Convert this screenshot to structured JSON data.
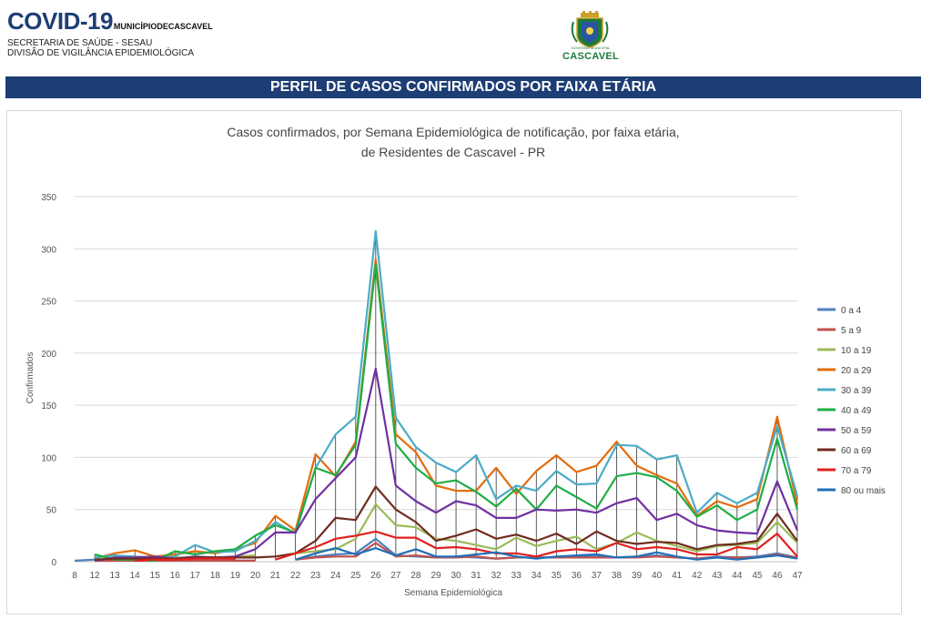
{
  "header": {
    "title": "COVID-19",
    "municipality": "MUNICÍPIODECASCAVEL",
    "line1": "SECRETARIA DE SAÚDE - SESAU",
    "line2": "DIVISÃO DE VIGILÂNCIA EPIDEMIOLÓGICA",
    "logo_top": "GOVERNO MUNICIPAL",
    "logo_text": "CASCAVEL"
  },
  "banner": {
    "text": "PERFIL DE CASOS CONFIRMADOS POR FAIXA ETÁRIA"
  },
  "chart_data": {
    "type": "line",
    "title": "Casos confirmados, por Semana Epidemiológica de notificação, por faixa etária,",
    "subtitle": "de Residentes de Cascavel - PR",
    "xlabel": "Semana Epidemiológica",
    "ylabel": "Confirmados",
    "ylim": [
      0,
      350
    ],
    "yticks": [
      0,
      50,
      100,
      150,
      200,
      250,
      300,
      350
    ],
    "grid": true,
    "legend_position": "right",
    "drop_lines": true,
    "x": [
      "8",
      "12",
      "13",
      "14",
      "15",
      "16",
      "17",
      "18",
      "19",
      "20",
      "21",
      "22",
      "23",
      "24",
      "25",
      "26",
      "27",
      "28",
      "29",
      "30",
      "31",
      "32",
      "33",
      "34",
      "35",
      "36",
      "37",
      "38",
      "39",
      "40",
      "41",
      "42",
      "43",
      "44",
      "45",
      "46",
      "47"
    ],
    "series": [
      {
        "name": "0 a 4",
        "color": "#4e81bd",
        "values": [
          1,
          2,
          1,
          1,
          2,
          1,
          1,
          1,
          1,
          1,
          null,
          2,
          5,
          7,
          8,
          22,
          6,
          5,
          4,
          5,
          4,
          3,
          4,
          4,
          4,
          5,
          5,
          4,
          5,
          6,
          4,
          3,
          5,
          4,
          5,
          8,
          4
        ]
      },
      {
        "name": "5 a 9",
        "color": "#c0504d",
        "values": [
          null,
          1,
          1,
          1,
          1,
          1,
          1,
          1,
          1,
          1,
          null,
          2,
          4,
          5,
          5,
          18,
          5,
          6,
          4,
          4,
          5,
          3,
          4,
          4,
          4,
          4,
          4,
          4,
          4,
          5,
          4,
          3,
          4,
          4,
          4,
          7,
          4
        ]
      },
      {
        "name": "10 a 19",
        "color": "#9bbb59",
        "values": [
          null,
          2,
          3,
          4,
          3,
          4,
          4,
          3,
          5,
          6,
          null,
          8,
          10,
          12,
          22,
          55,
          35,
          33,
          22,
          20,
          16,
          12,
          23,
          15,
          20,
          24,
          12,
          18,
          28,
          20,
          15,
          10,
          15,
          16,
          18,
          38,
          18
        ]
      },
      {
        "name": "20 a 29",
        "color": "#e46c0a",
        "values": [
          null,
          3,
          8,
          11,
          5,
          7,
          10,
          8,
          12,
          18,
          44,
          30,
          103,
          82,
          115,
          290,
          122,
          105,
          73,
          68,
          68,
          90,
          65,
          87,
          102,
          86,
          92,
          115,
          92,
          83,
          75,
          44,
          58,
          52,
          60,
          139,
          55
        ]
      },
      {
        "name": "30 a 39",
        "color": "#4bacc6",
        "values": [
          null,
          4,
          6,
          5,
          4,
          5,
          16,
          9,
          10,
          20,
          38,
          27,
          90,
          122,
          139,
          317,
          138,
          110,
          95,
          86,
          102,
          60,
          73,
          68,
          87,
          74,
          75,
          112,
          111,
          98,
          102,
          47,
          66,
          56,
          66,
          130,
          63
        ]
      },
      {
        "name": "40 a 49",
        "color": "#1fae45",
        "values": [
          null,
          7,
          2,
          2,
          1,
          10,
          7,
          10,
          12,
          25,
          35,
          28,
          90,
          83,
          112,
          285,
          113,
          90,
          75,
          78,
          67,
          53,
          70,
          50,
          73,
          62,
          51,
          82,
          85,
          81,
          68,
          43,
          54,
          40,
          50,
          118,
          50
        ]
      },
      {
        "name": "50 a 59",
        "color": "#7030a0",
        "values": [
          null,
          1,
          4,
          4,
          5,
          3,
          5,
          4,
          5,
          12,
          28,
          28,
          60,
          80,
          100,
          185,
          73,
          58,
          47,
          58,
          54,
          42,
          42,
          50,
          49,
          50,
          47,
          56,
          61,
          40,
          46,
          35,
          30,
          28,
          27,
          77,
          30
        ]
      },
      {
        "name": "60 a 69",
        "color": "#6f2c1f",
        "values": [
          null,
          2,
          3,
          3,
          3,
          3,
          4,
          4,
          4,
          4,
          5,
          8,
          20,
          42,
          40,
          72,
          50,
          38,
          20,
          25,
          31,
          22,
          26,
          20,
          27,
          17,
          29,
          20,
          17,
          19,
          18,
          12,
          16,
          17,
          20,
          46,
          20
        ]
      },
      {
        "name": "70 a 79",
        "color": "#e02020",
        "values": [
          null,
          null,
          null,
          1,
          2,
          2,
          3,
          3,
          3,
          null,
          2,
          8,
          14,
          22,
          25,
          29,
          23,
          23,
          13,
          14,
          12,
          8,
          8,
          5,
          10,
          12,
          10,
          18,
          12,
          14,
          12,
          7,
          7,
          14,
          12,
          27,
          5
        ]
      },
      {
        "name": "80 ou mais",
        "color": "#1f6fb8",
        "values": [
          null,
          null,
          null,
          null,
          null,
          null,
          null,
          null,
          null,
          null,
          null,
          2,
          8,
          13,
          7,
          13,
          6,
          12,
          5,
          5,
          7,
          9,
          5,
          3,
          5,
          6,
          7,
          4,
          5,
          9,
          5,
          2,
          4,
          2,
          4,
          6,
          3
        ]
      }
    ]
  }
}
